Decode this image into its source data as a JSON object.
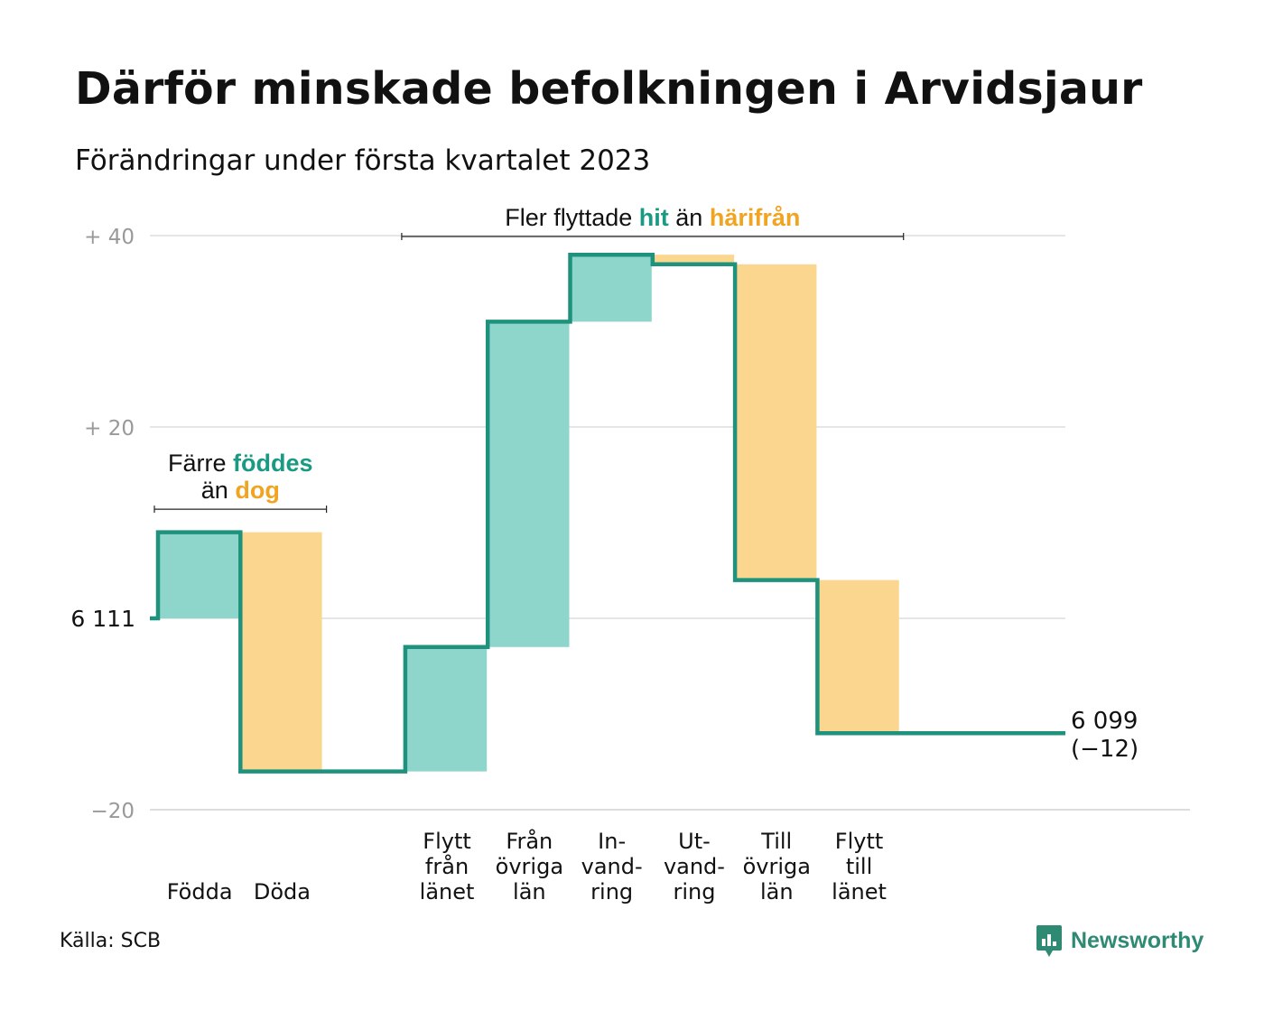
{
  "title": "Därför minskade befolkningen i Arvidsjaur",
  "subtitle": "Förändringar under första kvartalet 2023",
  "source": "Källa: SCB",
  "brand": "Newsworthy",
  "colors": {
    "increase_fill": "#8ed6cc",
    "decrease_fill": "#fad68e",
    "line": "#1e927d",
    "teal_text": "#1a9983",
    "orange_text": "#f0a421",
    "grid": "#dddddd",
    "tick_text": "#999999"
  },
  "chart_data": {
    "type": "waterfall",
    "start_value": 6111,
    "end_value": 6099,
    "end_label": "6 099",
    "end_change_label": "(−12)",
    "ylim": [
      -20,
      40
    ],
    "y_ticks": [
      {
        "value": 40,
        "label": "+ 40"
      },
      {
        "value": 20,
        "label": "+ 20"
      },
      {
        "value": 0,
        "label": "6 111"
      },
      {
        "value": -20,
        "label": "−20"
      }
    ],
    "steps": [
      {
        "label_lines": [
          "Födda"
        ],
        "value": 9,
        "kind": "increase"
      },
      {
        "label_lines": [
          "Döda"
        ],
        "value": -25,
        "kind": "decrease"
      },
      {
        "label_lines": [],
        "value": 0,
        "kind": "gap"
      },
      {
        "label_lines": [
          "Flytt",
          "från",
          "länet"
        ],
        "value": 13,
        "kind": "increase"
      },
      {
        "label_lines": [
          "Från",
          "övriga",
          "län"
        ],
        "value": 34,
        "kind": "increase"
      },
      {
        "label_lines": [
          "In-",
          "vand-",
          "ring"
        ],
        "value": 7,
        "kind": "increase"
      },
      {
        "label_lines": [
          "Ut-",
          "vand-",
          "ring"
        ],
        "value": -1,
        "kind": "decrease"
      },
      {
        "label_lines": [
          "Till",
          "övriga",
          "län"
        ],
        "value": -33,
        "kind": "decrease"
      },
      {
        "label_lines": [
          "Flytt",
          "till",
          "länet"
        ],
        "value": -16,
        "kind": "decrease"
      },
      {
        "label_lines": [],
        "value": 0,
        "kind": "end"
      }
    ],
    "annotations": [
      {
        "from_step": 0,
        "to_step": 1,
        "at_value": 11.5,
        "lines": [
          [
            {
              "text": "Färre ",
              "style": "plain"
            },
            {
              "text": "föddes",
              "style": "teal"
            }
          ],
          [
            {
              "text": "än ",
              "style": "plain"
            },
            {
              "text": "dog",
              "style": "orange"
            }
          ]
        ]
      },
      {
        "from_step": 3,
        "to_step": 8,
        "at_value": 40,
        "lines": [
          [
            {
              "text": "Fler flyttade ",
              "style": "plain"
            },
            {
              "text": "hit",
              "style": "teal"
            },
            {
              "text": " än ",
              "style": "plain"
            },
            {
              "text": "härifrån",
              "style": "orange"
            }
          ]
        ]
      }
    ]
  }
}
